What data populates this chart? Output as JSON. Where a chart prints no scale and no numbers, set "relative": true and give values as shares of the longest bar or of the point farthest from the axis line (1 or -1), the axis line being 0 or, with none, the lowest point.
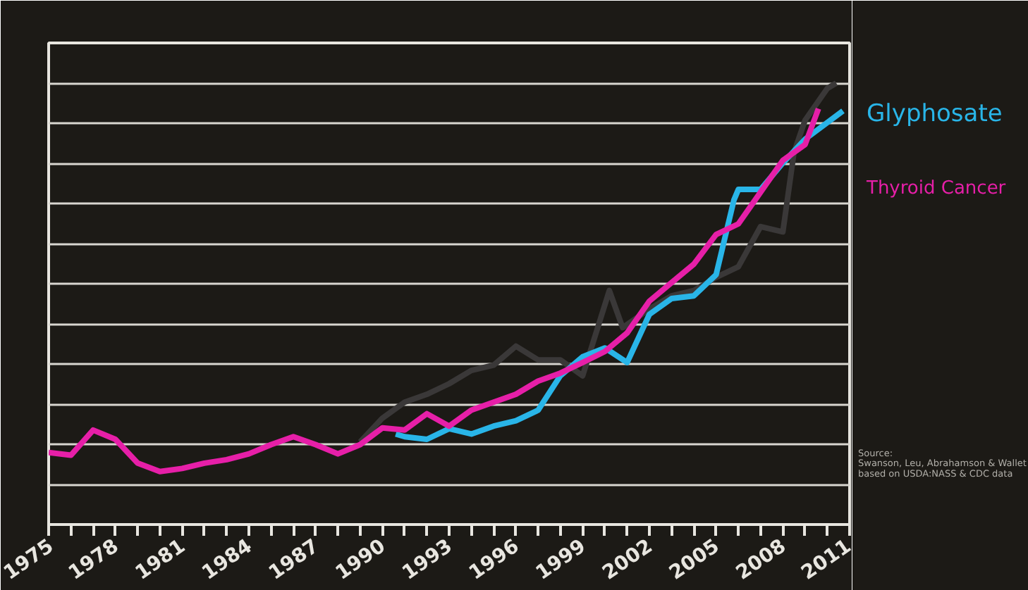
{
  "chart_data": {
    "type": "line",
    "relative": true,
    "grid": "y",
    "legend": "right",
    "xlim": [
      1975,
      2011
    ],
    "xticks": [
      1975,
      {
        "value": 1976,
        "label": null
      },
      {
        "value": 1977,
        "label": null
      },
      1978,
      {
        "value": 1979,
        "label": null
      },
      {
        "value": 1980,
        "label": null
      },
      1981,
      {
        "value": 1982,
        "label": null
      },
      {
        "value": 1983,
        "label": null
      },
      1984,
      {
        "value": 1985,
        "label": null
      },
      {
        "value": 1986,
        "label": null
      },
      1987,
      {
        "value": 1988,
        "label": null
      },
      {
        "value": 1989,
        "label": null
      },
      1990,
      {
        "value": 1991,
        "label": null
      },
      {
        "value": 1992,
        "label": null
      },
      1993,
      {
        "value": 1994,
        "label": null
      },
      {
        "value": 1995,
        "label": null
      },
      1996,
      {
        "value": 1997,
        "label": null
      },
      {
        "value": 1998,
        "label": null
      },
      1999,
      {
        "value": 2000,
        "label": null
      },
      {
        "value": 2001,
        "label": null
      },
      2002,
      {
        "value": 2003,
        "label": null
      },
      {
        "value": 2004,
        "label": null
      },
      2005,
      {
        "value": 2006,
        "label": null
      },
      {
        "value": 2007,
        "label": null
      },
      2008,
      {
        "value": 2009,
        "label": null
      },
      {
        "value": 2010,
        "label": null
      },
      2011
    ],
    "series": [
      {
        "color": "#3a3838",
        "x": [
          1989,
          1990,
          1991,
          1992,
          1993,
          1994,
          1995,
          1996,
          1997,
          1998,
          1999,
          2000.2,
          2000.8,
          2002,
          2003,
          2004,
          2005,
          2006,
          2007,
          2008,
          2008.5,
          2009,
          2010,
          2010.4
        ],
        "values": [
          0.187,
          0.241,
          0.277,
          0.295,
          0.319,
          0.349,
          0.361,
          0.404,
          0.373,
          0.373,
          0.337,
          0.53,
          0.446,
          0.488,
          0.518,
          0.53,
          0.56,
          0.584,
          0.675,
          0.663,
          0.843,
          0.916,
          0.988,
          1.0
        ]
      },
      {
        "name": "Glyphosate",
        "color": "#29b5e8",
        "x": [
          1990.6,
          1991,
          1992,
          1993,
          1994,
          1995,
          1996,
          1997,
          1998,
          1999,
          2000,
          2001,
          2002,
          2003,
          2004,
          2005,
          2005.8,
          2006,
          2007,
          2008,
          2009,
          2010.7
        ],
        "values": [
          0.205,
          0.199,
          0.193,
          0.217,
          0.205,
          0.223,
          0.235,
          0.259,
          0.337,
          0.38,
          0.4,
          0.367,
          0.476,
          0.512,
          0.518,
          0.566,
          0.735,
          0.759,
          0.759,
          0.819,
          0.873,
          0.937
        ]
      },
      {
        "name": "Thyroid Cancer",
        "color": "#e61fa8",
        "x": [
          1975,
          1976,
          1977,
          1978,
          1979,
          1980,
          1981,
          1982,
          1983,
          1984,
          1985,
          1986,
          1987,
          1988,
          1989,
          1990,
          1991,
          1992,
          1993,
          1994,
          1995,
          1996,
          1997,
          1998,
          1999,
          2000,
          2001,
          2002,
          2003,
          2004,
          2005,
          2006,
          2007,
          2008,
          2009,
          2009.6
        ],
        "values": [
          0.163,
          0.157,
          0.214,
          0.193,
          0.139,
          0.12,
          0.127,
          0.139,
          0.147,
          0.16,
          0.181,
          0.199,
          0.181,
          0.16,
          0.181,
          0.219,
          0.214,
          0.251,
          0.223,
          0.259,
          0.277,
          0.295,
          0.325,
          0.343,
          0.367,
          0.392,
          0.434,
          0.506,
          0.548,
          0.59,
          0.657,
          0.681,
          0.753,
          0.825,
          0.861,
          0.942
        ]
      }
    ],
    "annotations": [
      "Source:",
      "Swanson, Leu, Abrahamson & Wallet",
      "based on USDA:NASS & CDC data"
    ]
  }
}
